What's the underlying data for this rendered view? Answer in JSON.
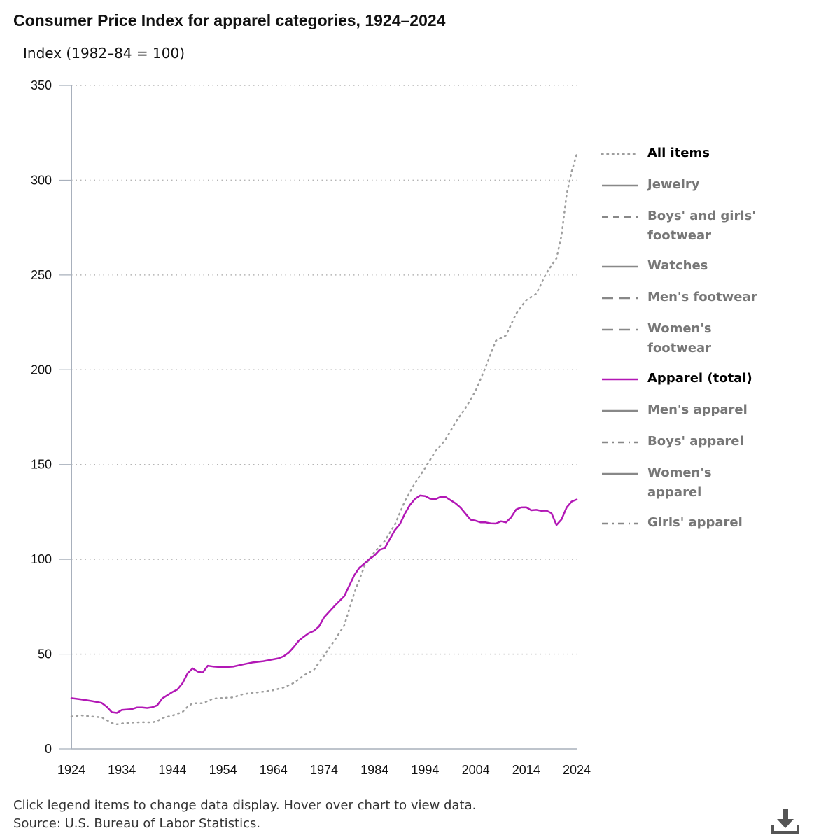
{
  "title": "Consumer Price Index for apparel categories, 1924–2024",
  "ylabel": "Index (1982–84 = 100)",
  "footer": {
    "instructions": "Click legend items to change data display. Hover over chart to view data.",
    "source": "Source: U.S. Bureau of Labor Statistics."
  },
  "icons": {
    "download": "download-icon"
  },
  "colors": {
    "all_items": "#9e9e9e",
    "apparel_total": "#b217b5",
    "inactive": "#888888",
    "axis": "#a8b0bc",
    "grid": "#b5b5b5"
  },
  "legend": [
    {
      "label": "All items",
      "style": "dotted",
      "active": true
    },
    {
      "label": "Jewelry",
      "style": "solid",
      "active": false
    },
    {
      "label": "Boys' and girls' footwear",
      "style": "dashed",
      "active": false
    },
    {
      "label": "Watches",
      "style": "solid",
      "active": false
    },
    {
      "label": "Men's footwear",
      "style": "longdash",
      "active": false
    },
    {
      "label": "Women's footwear",
      "style": "longdash",
      "active": false
    },
    {
      "label": "Apparel (total)",
      "style": "solid",
      "active": true
    },
    {
      "label": "Men's apparel",
      "style": "solid",
      "active": false
    },
    {
      "label": "Boys' apparel",
      "style": "dashdot",
      "active": false
    },
    {
      "label": "Women's apparel",
      "style": "solid",
      "active": false
    },
    {
      "label": "Girls' apparel",
      "style": "dashdot",
      "active": false
    }
  ],
  "chart_data": {
    "type": "line",
    "xlim": [
      1924,
      2024
    ],
    "ylim": [
      0,
      350
    ],
    "xticks": [
      1924,
      1934,
      1944,
      1954,
      1964,
      1974,
      1984,
      1994,
      2004,
      2014,
      2024
    ],
    "yticks": [
      0,
      50,
      100,
      150,
      200,
      250,
      300,
      350
    ],
    "grid": "horizontal dotted",
    "legend_position": "right",
    "series": [
      {
        "name": "All items",
        "style": "dotted",
        "x": [
          1924,
          1926,
          1928,
          1930,
          1931,
          1932,
          1933,
          1934,
          1936,
          1938,
          1940,
          1941,
          1942,
          1944,
          1946,
          1947,
          1948,
          1950,
          1952,
          1954,
          1956,
          1958,
          1960,
          1962,
          1964,
          1966,
          1968,
          1970,
          1972,
          1974,
          1976,
          1978,
          1980,
          1982,
          1984,
          1986,
          1988,
          1990,
          1992,
          1994,
          1996,
          1998,
          2000,
          2002,
          2004,
          2006,
          2008,
          2010,
          2012,
          2014,
          2016,
          2018,
          2020,
          2021,
          2022,
          2023,
          2024
        ],
        "y": [
          17.1,
          17.7,
          17.1,
          16.7,
          15.2,
          13.7,
          13.0,
          13.4,
          13.9,
          14.1,
          14.0,
          14.7,
          16.3,
          17.6,
          19.5,
          22.3,
          24.1,
          24.1,
          26.5,
          26.9,
          27.2,
          28.9,
          29.6,
          30.2,
          31.0,
          32.4,
          34.8,
          38.8,
          41.8,
          49.3,
          56.9,
          65.2,
          82.4,
          96.5,
          103.9,
          109.6,
          118.3,
          130.7,
          140.3,
          148.2,
          156.9,
          163.0,
          172.2,
          179.9,
          188.9,
          201.6,
          215.3,
          218.1,
          229.6,
          236.7,
          240.0,
          251.1,
          258.8,
          271.0,
          292.7,
          304.7,
          313.7
        ]
      },
      {
        "name": "Apparel (total)",
        "style": "solid",
        "x": [
          1924,
          1926,
          1928,
          1930,
          1931,
          1932,
          1933,
          1934,
          1936,
          1937,
          1938,
          1939,
          1940,
          1941,
          1942,
          1944,
          1945,
          1946,
          1947,
          1948,
          1949,
          1950,
          1951,
          1952,
          1954,
          1956,
          1958,
          1960,
          1962,
          1964,
          1965,
          1966,
          1967,
          1968,
          1969,
          1970,
          1971,
          1972,
          1973,
          1974,
          1976,
          1978,
          1980,
          1981,
          1982,
          1983,
          1984,
          1985,
          1986,
          1987,
          1988,
          1989,
          1990,
          1991,
          1992,
          1993,
          1994,
          1995,
          1996,
          1997,
          1998,
          1999,
          2000,
          2001,
          2002,
          2003,
          2004,
          2005,
          2006,
          2007,
          2008,
          2009,
          2010,
          2011,
          2012,
          2013,
          2014,
          2015,
          2016,
          2017,
          2018,
          2019,
          2020,
          2021,
          2022,
          2023,
          2024
        ],
        "y": [
          26.8,
          26.1,
          25.3,
          24.3,
          22.3,
          19.4,
          19.0,
          20.6,
          21.0,
          21.9,
          21.9,
          21.6,
          22.0,
          23.0,
          26.7,
          30.0,
          31.4,
          34.7,
          39.9,
          42.5,
          40.8,
          40.3,
          43.9,
          43.5,
          43.1,
          43.4,
          44.6,
          45.7,
          46.3,
          47.3,
          47.8,
          48.9,
          50.8,
          53.7,
          57.1,
          59.2,
          61.1,
          62.3,
          64.6,
          69.4,
          75.2,
          80.6,
          91.7,
          95.6,
          97.8,
          100.2,
          102.1,
          105.0,
          105.9,
          110.6,
          115.4,
          118.6,
          124.1,
          128.7,
          131.9,
          133.7,
          133.4,
          132.0,
          131.7,
          132.9,
          133.0,
          131.3,
          129.6,
          127.3,
          124.0,
          120.9,
          120.4,
          119.5,
          119.5,
          119.0,
          118.9,
          120.1,
          119.5,
          122.1,
          126.3,
          127.4,
          127.5,
          125.9,
          126.1,
          125.6,
          125.7,
          124.4,
          118.1,
          121.1,
          127.4,
          130.5,
          131.6
        ]
      }
    ]
  }
}
